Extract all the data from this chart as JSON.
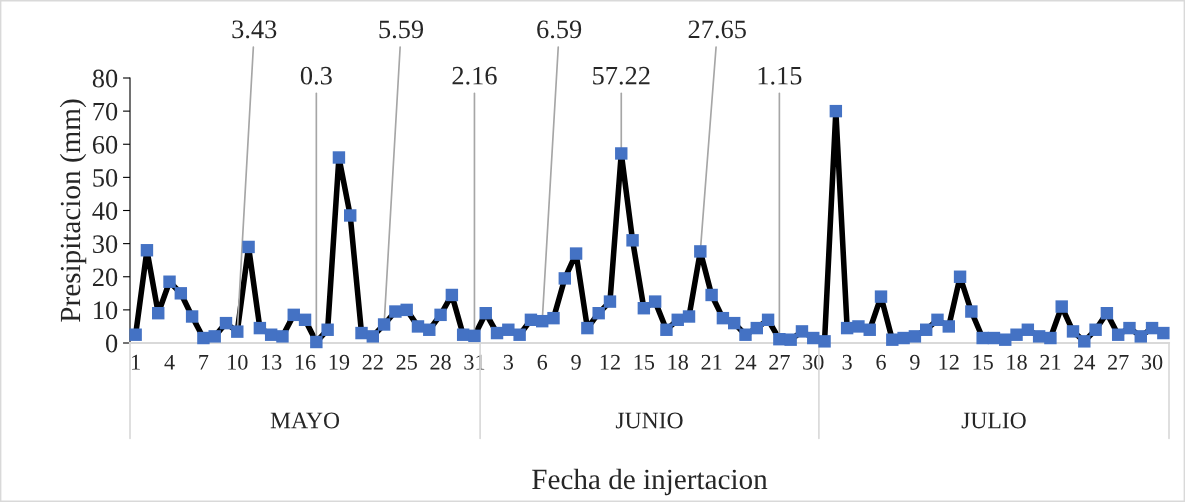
{
  "chart_data": {
    "type": "line",
    "xlabel": "Fecha de injertacion",
    "ylabel": "Presipitacion (mm)",
    "categories": [
      "1",
      null,
      null,
      "4",
      null,
      null,
      "7",
      null,
      null,
      "10",
      null,
      null,
      "13",
      null,
      null,
      "16",
      null,
      null,
      "19",
      null,
      null,
      "22",
      null,
      null,
      "25",
      null,
      null,
      "28",
      null,
      null,
      "31",
      null,
      null,
      "3",
      null,
      null,
      "6",
      null,
      null,
      "9",
      null,
      null,
      "12",
      null,
      null,
      "15",
      null,
      null,
      "18",
      null,
      null,
      "21",
      null,
      null,
      "24",
      null,
      null,
      "27",
      null,
      null,
      "30",
      null,
      null,
      "3",
      null,
      null,
      "6",
      null,
      null,
      "9",
      null,
      null,
      "12",
      null,
      null,
      "15",
      null,
      null,
      "18",
      null,
      null,
      "21",
      null,
      null,
      "24",
      null,
      null,
      "27",
      null,
      null,
      "30",
      null
    ],
    "series": [
      {
        "color": "#4472c4",
        "values": [
          2.5,
          28,
          9,
          18.5,
          15,
          8,
          1.5,
          2,
          6,
          3.43,
          29,
          4.5,
          2.5,
          2,
          8.5,
          7,
          0.3,
          4,
          56,
          38.5,
          3,
          2,
          5.59,
          9.5,
          10,
          5,
          4,
          8.5,
          14.5,
          2.5,
          2.16,
          9,
          3,
          4,
          2.5,
          7,
          6.59,
          7.5,
          19.5,
          27,
          4.5,
          9,
          12.5,
          57.22,
          31,
          10.5,
          12.5,
          4,
          7,
          8,
          27.65,
          14.5,
          7.5,
          6,
          2.5,
          4.5,
          7,
          1.15,
          1,
          3.5,
          1.5,
          0.5,
          70,
          4.5,
          5,
          4,
          14,
          1,
          1.5,
          2,
          4,
          7,
          5,
          20,
          9.5,
          1.5,
          1.5,
          1,
          2.5,
          4,
          2,
          1.5,
          11,
          3.5,
          0.5,
          4,
          9,
          2.5,
          4.5,
          2,
          4.5,
          3
        ],
        "value_labels": [
          null,
          null,
          null,
          null,
          null,
          null,
          null,
          null,
          null,
          "3.43",
          null,
          null,
          null,
          null,
          null,
          null,
          "0.3",
          null,
          null,
          null,
          null,
          null,
          "5.59",
          null,
          null,
          null,
          null,
          null,
          null,
          null,
          "2.16",
          null,
          null,
          null,
          null,
          null,
          "6.59",
          null,
          null,
          null,
          null,
          null,
          null,
          "57.22",
          null,
          null,
          null,
          null,
          null,
          null,
          "27.65",
          null,
          null,
          null,
          null,
          null,
          null,
          "1.15",
          null,
          null,
          null,
          null,
          null,
          null,
          null,
          null,
          null,
          null,
          null,
          null,
          null,
          null,
          null,
          null,
          null,
          null,
          null,
          null,
          null,
          null,
          null,
          null,
          null,
          null,
          null,
          null,
          null,
          null,
          null,
          null,
          null,
          null
        ]
      }
    ],
    "ylim": [
      0,
      80
    ],
    "yticks": [
      0,
      10,
      20,
      30,
      40,
      50,
      60,
      70,
      80
    ],
    "marker": "square",
    "line_style": "solid",
    "grid": false,
    "annotations": [
      "MAYO",
      "JUNIO",
      "JULIO"
    ]
  }
}
